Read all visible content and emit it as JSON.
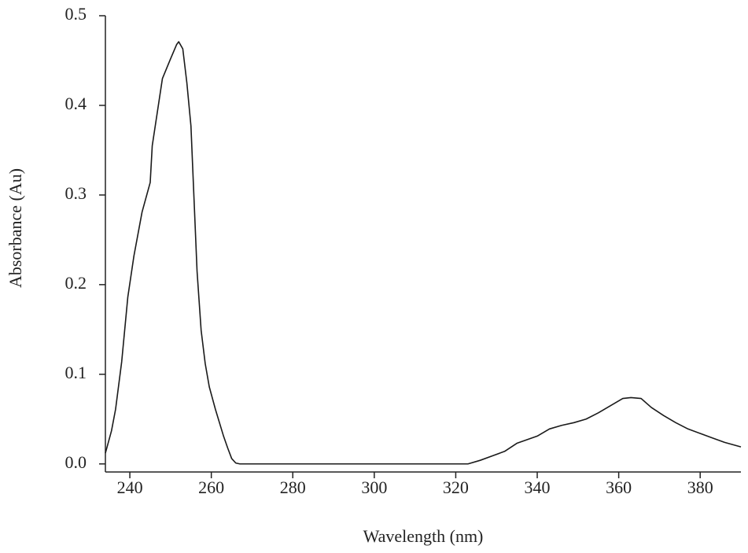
{
  "chart_data": {
    "type": "line",
    "x_label": "Wavelength (nm)",
    "y_label": "Absorbance (Au)",
    "x": [
      234,
      235.5,
      236.5,
      238,
      239.5,
      241,
      243,
      245,
      245.5,
      248,
      250,
      251.5,
      252,
      253,
      254,
      255,
      256.5,
      257.5,
      258.5,
      259.5,
      261,
      263,
      264,
      265,
      266,
      267,
      270,
      280,
      300,
      320,
      323,
      326,
      329,
      332,
      335,
      340,
      343,
      346,
      349,
      352,
      355,
      358,
      361,
      363,
      365.5,
      368,
      371,
      374,
      377,
      380,
      383,
      386,
      390
    ],
    "series": [
      {
        "color": "#1a1a1a",
        "values": [
          0.012,
          0.037,
          0.061,
          0.114,
          0.186,
          0.232,
          0.281,
          0.314,
          0.355,
          0.43,
          0.452,
          0.468,
          0.471,
          0.463,
          0.425,
          0.377,
          0.215,
          0.149,
          0.112,
          0.086,
          0.061,
          0.031,
          0.018,
          0.006,
          0.001,
          0,
          0,
          0,
          0,
          0,
          0,
          0.004,
          0.009,
          0.014,
          0.023,
          0.031,
          0.039,
          0.043,
          0.046,
          0.05,
          0.057,
          0.065,
          0.073,
          0.074,
          0.073,
          0.063,
          0.054,
          0.046,
          0.039,
          0.034,
          0.029,
          0.024,
          0.019
        ]
      }
    ],
    "xlim": [
      234,
      390
    ],
    "ylim": [
      -0.009,
      0.5
    ],
    "xticks": [
      240,
      260,
      280,
      300,
      320,
      340,
      360,
      380
    ],
    "yticks": [
      {
        "value": 0,
        "label": "0.0"
      },
      0.1,
      0.2,
      0.3,
      0.4,
      0.5
    ],
    "grid": false
  }
}
